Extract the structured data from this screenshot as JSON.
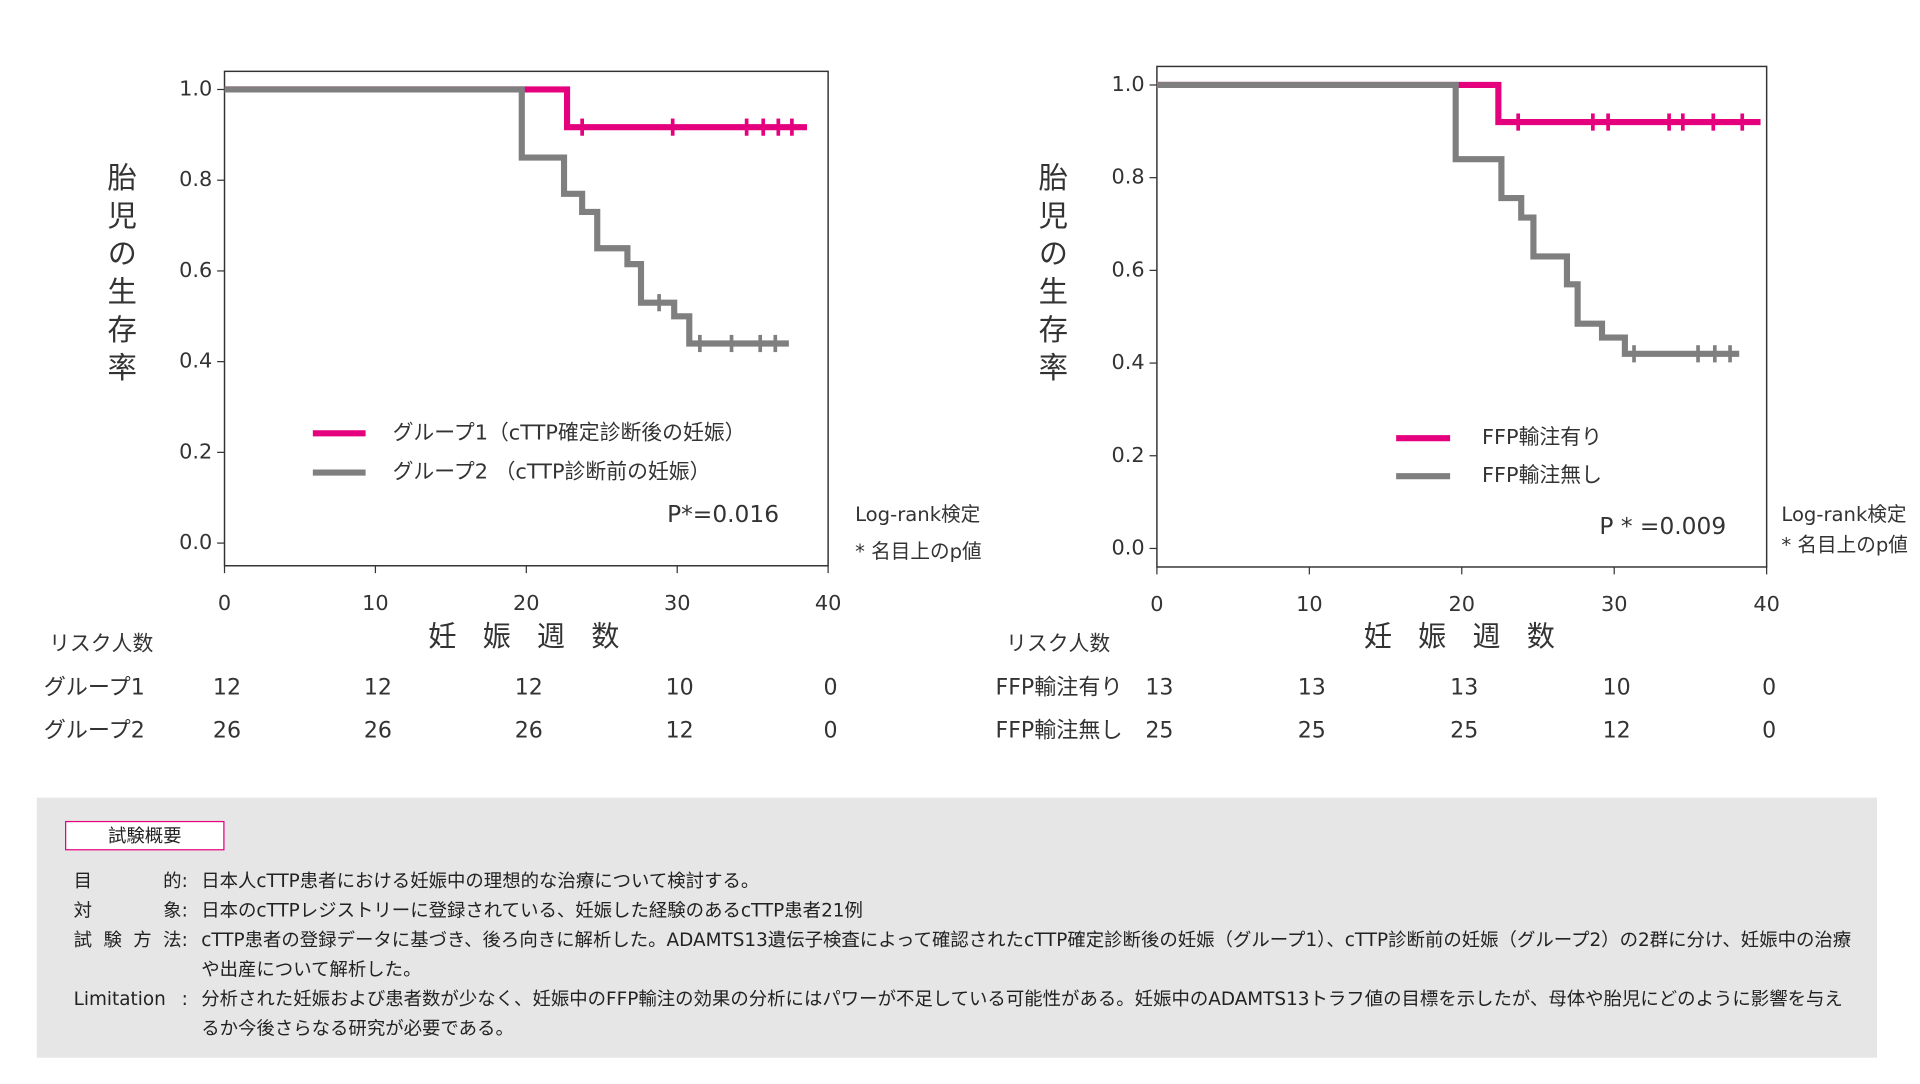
{
  "chart_data": [
    {
      "type": "step",
      "y_label": "胎児の生存率",
      "x_label": "妊 娠 週 数",
      "xlim": [
        0,
        40
      ],
      "xticks": [
        0,
        10,
        20,
        30,
        40
      ],
      "ylim": [
        -0.05,
        1.04
      ],
      "yticks": [
        {
          "value": 0,
          "label": "0.0"
        },
        {
          "value": 0.2,
          "label": "0.2"
        },
        {
          "value": 0.4,
          "label": "0.4"
        },
        {
          "value": 0.6,
          "label": "0.6"
        },
        {
          "value": 0.8,
          "label": "0.8"
        },
        {
          "value": 1,
          "label": "1.0"
        }
      ],
      "series": [
        {
          "name": "グループ1（cTTP確定診断後の妊娠）",
          "color": "#e5007e",
          "x": [
            0,
            22.7,
            38.6
          ],
          "values": [
            1,
            0.917,
            0.917
          ],
          "censor_x": [
            23.7,
            29.7,
            34.6,
            35.7,
            36.7,
            37.6
          ]
        },
        {
          "name": "グループ2 （cTTP診断前の妊娠）",
          "color": "#7f7f7f",
          "x": [
            0,
            19.7,
            22.5,
            23.7,
            24.7,
            26.7,
            27.6,
            29.8,
            30.8,
            37.4
          ],
          "values": [
            1,
            0.85,
            0.77,
            0.73,
            0.65,
            0.615,
            0.53,
            0.5,
            0.44,
            0.44
          ],
          "censor_x": [
            28.8,
            31.5,
            33.6,
            35.5,
            36.5
          ]
        }
      ],
      "p_value": "P*=0.016",
      "annotations": [
        "Log-rank検定",
        "* 名目上のp値"
      ]
    },
    {
      "type": "step",
      "y_label": "胎児の生存率",
      "x_label": "妊 娠 週 数",
      "xlim": [
        0,
        40
      ],
      "xticks": [
        0,
        10,
        20,
        30,
        40
      ],
      "ylim": [
        -0.04,
        1.04
      ],
      "yticks": [
        {
          "value": 0,
          "label": "0.0"
        },
        {
          "value": 0.2,
          "label": "0.2"
        },
        {
          "value": 0.4,
          "label": "0.4"
        },
        {
          "value": 0.6,
          "label": "0.6"
        },
        {
          "value": 0.8,
          "label": "0.8"
        },
        {
          "value": 1,
          "label": "1.0"
        }
      ],
      "series": [
        {
          "name": "FFP輸注有り",
          "color": "#e5007e",
          "x": [
            0,
            22.4,
            39.6
          ],
          "values": [
            1,
            0.92,
            0.92
          ],
          "censor_x": [
            23.7,
            28.6,
            29.6,
            33.6,
            34.5,
            36.5,
            38.4
          ]
        },
        {
          "name": "FFP輸注無し",
          "color": "#7f7f7f",
          "x": [
            0,
            19.6,
            22.6,
            23.9,
            24.7,
            26.9,
            27.6,
            29.2,
            30.7,
            38.2
          ],
          "values": [
            1,
            0.84,
            0.756,
            0.714,
            0.63,
            0.57,
            0.485,
            0.455,
            0.42,
            0.42
          ],
          "censor_x": [
            31.3,
            35.5,
            36.6,
            37.6
          ]
        }
      ],
      "p_value": "P * =0.009",
      "annotations": [
        "Log-rank検定",
        "* 名目上のp値"
      ]
    }
  ],
  "risk_tables": [
    {
      "title": "リスク人数",
      "rows": [
        {
          "name": "グループ1",
          "counts": [
            12,
            12,
            12,
            10,
            0
          ]
        },
        {
          "name": "グループ2",
          "counts": [
            26,
            26,
            26,
            12,
            0
          ]
        }
      ]
    },
    {
      "title": "リスク人数",
      "rows": [
        {
          "name": "FFP輸注有り",
          "counts": [
            13,
            13,
            13,
            10,
            0
          ]
        },
        {
          "name": "FFP輸注無し",
          "counts": [
            25,
            25,
            25,
            12,
            0
          ]
        }
      ]
    }
  ],
  "summary": {
    "title": "試験概要",
    "separator": ":",
    "items": [
      {
        "label": "目的",
        "text": "日本人cTTP患者における妊娠中の理想的な治療について検討する。"
      },
      {
        "label": "対象",
        "text": "日本のcTTPレジストリーに登録されている、妊娠した経験のあるcTTP患者21例"
      },
      {
        "label": "試験方法",
        "text": "cTTP患者の登録データに基づき、後ろ向きに解析した。ADAMTS13遺伝子検査によって確認されたcTTP確定診断後の妊娠（グループ1）、cTTP診断前の妊娠（グループ2）の2群に分け、妊娠中の治療や出産について解析した。"
      },
      {
        "label": "Limitation",
        "text": "分析された妊娠および患者数が少なく、妊娠中のFFP輸注の効果の分析にはパワーが不足している可能性がある。妊娠中のADAMTS13トラフ値の目標を示したが、母体や胎児にどのように影響を与えるか今後さらなる研究が必要である。"
      }
    ]
  }
}
